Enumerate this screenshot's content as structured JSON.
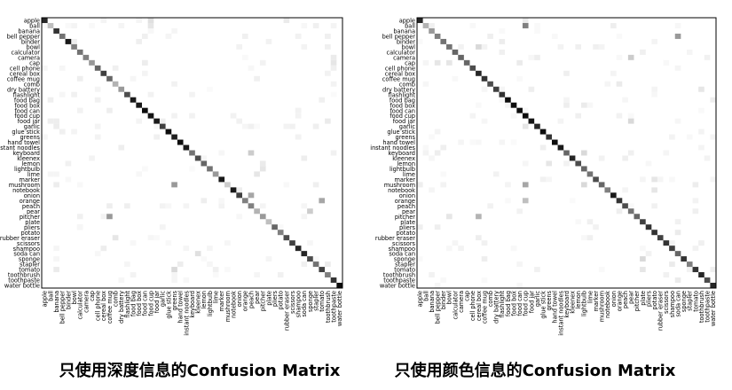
{
  "chart_data": [
    {
      "type": "heatmap",
      "caption": "只使用深度信息的Confusion Matrix",
      "labels": [
        "apple",
        "ball",
        "banana",
        "bell pepper",
        "binder",
        "bowl",
        "calculator",
        "camera",
        "cap",
        "cell phone",
        "cereal box",
        "coffee mug",
        "comb",
        "dry battery",
        "flashlight",
        "food bag",
        "food box",
        "food can",
        "food cup",
        "food jar",
        "garlic",
        "glue stick",
        "greens",
        "hand towel",
        "instant noodles",
        "keyboard",
        "kleenex",
        "lemon",
        "lightbulb",
        "lime",
        "marker",
        "mushroom",
        "notebook",
        "onion",
        "orange",
        "peach",
        "pear",
        "pitcher",
        "plate",
        "pliers",
        "potato",
        "rubber eraser",
        "scissors",
        "shampoo",
        "soda can",
        "sponge",
        "stapler",
        "tomato",
        "toothbrush",
        "toothpaste",
        "water bottle"
      ],
      "diagonal": [
        0.85,
        0.25,
        0.8,
        0.55,
        0.9,
        0.5,
        0.55,
        0.5,
        0.4,
        0.6,
        0.75,
        0.6,
        0.3,
        0.4,
        0.7,
        0.9,
        0.9,
        0.95,
        0.92,
        0.9,
        0.75,
        0.95,
        0.88,
        0.95,
        0.9,
        0.55,
        0.7,
        0.6,
        0.55,
        0.4,
        0.9,
        0.2,
        0.9,
        0.75,
        0.5,
        0.5,
        0.3,
        0.4,
        0.25,
        0.6,
        0.5,
        0.7,
        0.75,
        0.85,
        0.85,
        0.7,
        0.55,
        0.75,
        0.5,
        0.8,
        0.95
      ],
      "off_diagonal": [
        [
          0,
          18,
          0.12
        ],
        [
          0,
          41,
          0.08
        ],
        [
          1,
          18,
          0.1
        ],
        [
          4,
          38,
          0.05
        ],
        [
          7,
          49,
          0.08
        ],
        [
          8,
          49,
          0.1
        ],
        [
          9,
          49,
          0.06
        ],
        [
          12,
          22,
          0.05
        ],
        [
          19,
          48,
          0.08
        ],
        [
          20,
          35,
          0.06
        ],
        [
          25,
          35,
          0.2
        ],
        [
          28,
          37,
          0.1
        ],
        [
          31,
          2,
          0.07
        ],
        [
          31,
          22,
          0.4
        ],
        [
          33,
          35,
          0.35
        ],
        [
          34,
          47,
          0.35
        ],
        [
          36,
          45,
          0.2
        ],
        [
          37,
          11,
          0.4
        ],
        [
          41,
          12,
          0.1
        ],
        [
          44,
          26,
          0.12
        ],
        [
          46,
          48,
          0.08
        ],
        [
          47,
          2,
          0.08
        ],
        [
          47,
          22,
          0.15
        ],
        [
          3,
          48,
          0.06
        ],
        [
          10,
          48,
          0.05
        ],
        [
          14,
          18,
          0.05
        ],
        [
          27,
          37,
          0.08
        ],
        [
          29,
          36,
          0.1
        ]
      ]
    },
    {
      "type": "heatmap",
      "caption": "只使用颜色信息的Confusion Matrix",
      "labels": [
        "apple",
        "ball",
        "banana",
        "bell pepper",
        "binder",
        "bowl",
        "calculator",
        "camera",
        "cap",
        "cell phone",
        "cereal box",
        "coffee mug",
        "comb",
        "dry battery",
        "flashlight",
        "food bag",
        "food box",
        "food can",
        "food cup",
        "food jar",
        "garlic",
        "glue stick",
        "greens",
        "hand towel",
        "instant noodles",
        "keyboard",
        "kleenex",
        "lemon",
        "lightbulb",
        "lime",
        "marker",
        "mushroom",
        "notebook",
        "onion",
        "orange",
        "peach",
        "pear",
        "pitcher",
        "plate",
        "pliers",
        "potato",
        "rubber eraser",
        "scissors",
        "shampoo",
        "soda can",
        "sponge",
        "stapler",
        "tomato",
        "toothbrush",
        "toothpaste",
        "water bottle"
      ],
      "diagonal": [
        0.85,
        0.3,
        0.4,
        0.5,
        0.55,
        0.55,
        0.6,
        0.6,
        0.6,
        0.7,
        0.85,
        0.8,
        0.7,
        0.75,
        0.8,
        0.95,
        0.95,
        0.95,
        0.95,
        0.92,
        0.85,
        0.95,
        0.8,
        0.95,
        0.9,
        0.6,
        0.85,
        0.7,
        0.6,
        0.55,
        0.7,
        0.6,
        0.5,
        0.9,
        0.8,
        0.7,
        0.55,
        0.6,
        0.75,
        0.8,
        0.8,
        0.75,
        0.8,
        0.75,
        0.6,
        0.8,
        0.5,
        0.8,
        0.85,
        0.7,
        0.85
      ],
      "off_diagonal": [
        [
          0,
          18,
          0.08
        ],
        [
          1,
          18,
          0.5
        ],
        [
          3,
          44,
          0.4
        ],
        [
          5,
          10,
          0.15
        ],
        [
          7,
          36,
          0.2
        ],
        [
          8,
          3,
          0.1
        ],
        [
          8,
          5,
          0.1
        ],
        [
          8,
          17,
          0.08
        ],
        [
          12,
          34,
          0.08
        ],
        [
          13,
          48,
          0.1
        ],
        [
          19,
          36,
          0.15
        ],
        [
          20,
          18,
          0.1
        ],
        [
          25,
          28,
          0.15
        ],
        [
          31,
          18,
          0.35
        ],
        [
          31,
          28,
          0.15
        ],
        [
          32,
          40,
          0.1
        ],
        [
          34,
          18,
          0.25
        ],
        [
          37,
          5,
          0.1
        ],
        [
          37,
          10,
          0.3
        ],
        [
          45,
          38,
          0.15
        ],
        [
          46,
          43,
          0.08
        ],
        [
          47,
          38,
          0.1
        ],
        [
          40,
          44,
          0.08
        ],
        [
          30,
          40,
          0.1
        ],
        [
          27,
          22,
          0.1
        ],
        [
          16,
          28,
          0.08
        ],
        [
          6,
          38,
          0.06
        ],
        [
          49,
          44,
          0.08
        ]
      ]
    }
  ]
}
